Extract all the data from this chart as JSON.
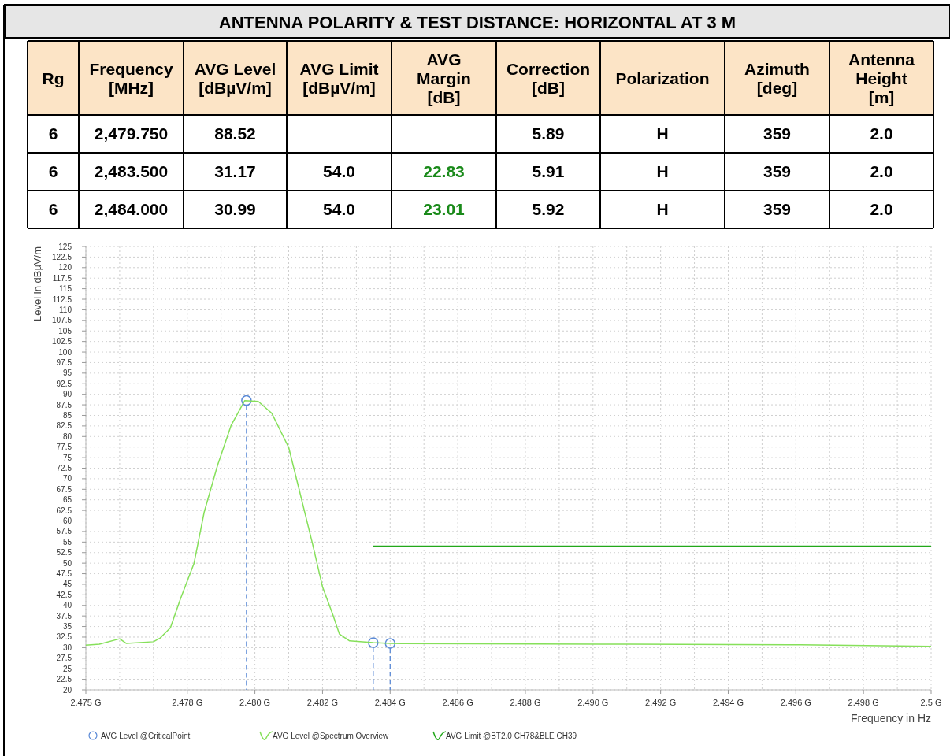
{
  "chart_data": [
    {
      "type": "other",
      "title": "ANTENNA POLARITY & TEST DISTANCE: HORIZONTAL AT 3 M",
      "categories": [
        "Rg",
        "Frequency\n[MHz]",
        "AVG Level\n[dBµV/m]",
        "AVG Limit\n[dBµV/m]",
        "AVG\nMargin\n[dB]",
        "Correction\n[dB]",
        "Polarization",
        "Azimuth\n[deg]",
        "Antenna\nHeight\n[m]"
      ],
      "color": "#fce4c6",
      "cell_labels": [
        [
          "6",
          "2,479.750",
          "88.52",
          null,
          null,
          "5.89",
          "H",
          "359",
          "2.0"
        ],
        [
          "6",
          "2,483.500",
          "31.17",
          "54.0",
          "22.83",
          "5.91",
          "H",
          "359",
          "2.0"
        ],
        [
          "6",
          "2,484.000",
          "30.99",
          "54.0",
          "23.01",
          "5.92",
          "H",
          "359",
          "2.0"
        ]
      ]
    },
    {
      "type": "line",
      "xlabel": "Frequency in Hz",
      "ylabel": "Level in dBµV/m",
      "grid": true,
      "legend": "bottom",
      "xlim": [
        2.475,
        2.5
      ],
      "xticks": [
        {
          "value": 2.475,
          "label": "2.475 G"
        },
        {
          "value": 2.476,
          "label": null
        },
        {
          "value": 2.477,
          "label": null
        },
        {
          "value": 2.478,
          "label": "2.478 G"
        },
        {
          "value": 2.479,
          "label": null
        },
        {
          "value": 2.48,
          "label": "2.480 G"
        },
        {
          "value": 2.481,
          "label": null
        },
        {
          "value": 2.482,
          "label": "2.482 G"
        },
        {
          "value": 2.483,
          "label": null
        },
        {
          "value": 2.484,
          "label": "2.484 G"
        },
        {
          "value": 2.485,
          "label": null
        },
        {
          "value": 2.486,
          "label": "2.486 G"
        },
        {
          "value": 2.487,
          "label": null
        },
        {
          "value": 2.488,
          "label": "2.488 G"
        },
        {
          "value": 2.489,
          "label": null
        },
        {
          "value": 2.49,
          "label": "2.490 G"
        },
        {
          "value": 2.491,
          "label": null
        },
        {
          "value": 2.492,
          "label": "2.492 G"
        },
        {
          "value": 2.493,
          "label": null
        },
        {
          "value": 2.494,
          "label": "2.494 G"
        },
        {
          "value": 2.495,
          "label": null
        },
        {
          "value": 2.496,
          "label": "2.496 G"
        },
        {
          "value": 2.497,
          "label": null
        },
        {
          "value": 2.498,
          "label": "2.498 G"
        },
        {
          "value": 2.499,
          "label": null
        },
        {
          "value": 2.5,
          "label": "2.5 G"
        }
      ],
      "ylim": [
        20,
        125
      ],
      "yticks": [
        20,
        22.5,
        25,
        27.5,
        30,
        32.5,
        35,
        37.5,
        40,
        42.5,
        45,
        47.5,
        50,
        52.5,
        55,
        57.5,
        60,
        62.5,
        65,
        67.5,
        70,
        72.5,
        75,
        77.5,
        80,
        82.5,
        85,
        87.5,
        90,
        92.5,
        95,
        97.5,
        100,
        102.5,
        105,
        107.5,
        110,
        112.5,
        115,
        117.5,
        120,
        122.5,
        125
      ],
      "series": [
        {
          "name": "AVG Level @CriticalPoint",
          "type": "lollipop",
          "marker": "circle",
          "color": "#5b8ad6",
          "x": [
            2.47975,
            2.4835,
            2.484
          ],
          "values": [
            88.52,
            31.17,
            30.99
          ]
        },
        {
          "name": "AVG Level @Spectrum Overview",
          "type": "line",
          "color": "#86e05a",
          "x": [
            2.475,
            2.4754,
            2.476,
            2.4762,
            2.477,
            2.4772,
            2.4775,
            2.4778,
            2.4782,
            2.4785,
            2.4789,
            2.4793,
            2.4797,
            2.4801,
            2.4805,
            2.481,
            2.4813,
            2.4817,
            2.482,
            2.4823,
            2.4825,
            2.4828,
            2.4835,
            2.484,
            2.4864,
            2.4911,
            2.4958,
            2.4981,
            2.5
          ],
          "values": [
            30.6,
            30.8,
            32.1,
            31,
            31.4,
            32.3,
            34.7,
            41.6,
            50,
            62.1,
            73.3,
            82.7,
            88.5,
            88.3,
            85.5,
            77.4,
            67.7,
            54.7,
            44.4,
            37.9,
            33.2,
            31.6,
            31.17,
            30.99,
            30.9,
            30.8,
            30.7,
            30.5,
            30.3
          ]
        },
        {
          "name": "AVG Limit @BT2.0 CH78&BLE CH39",
          "type": "line",
          "color": "#22a81a",
          "x": [
            2.4835,
            2.5
          ],
          "values": [
            54,
            54
          ]
        }
      ]
    }
  ]
}
